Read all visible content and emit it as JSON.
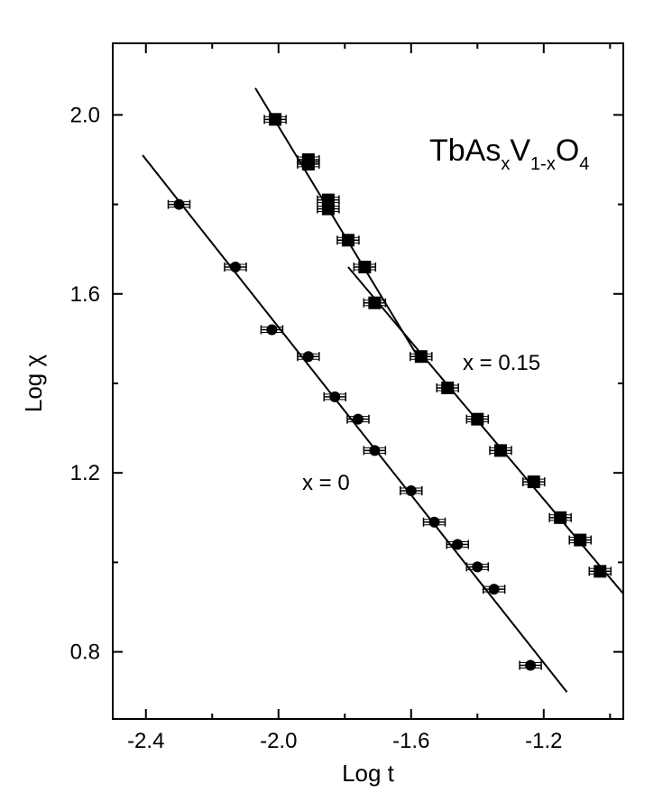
{
  "chart_data": {
    "type": "scatter",
    "xlabel": "Log t",
    "ylabel": "Log χ",
    "xlim": [
      -2.5,
      -0.96
    ],
    "ylim": [
      0.65,
      2.16
    ],
    "xticks": [
      -2.4,
      -2.0,
      -1.6,
      -1.2
    ],
    "xtick_labels": [
      "-2.4",
      "-2.0",
      "-1.6",
      "-1.2"
    ],
    "yticks": [
      0.8,
      1.2,
      1.6,
      2.0
    ],
    "ytick_labels": [
      "0.8",
      "1.2",
      "1.6",
      "2.0"
    ],
    "formula": {
      "base1": "TbAs",
      "sub1": "x",
      "base2": "V",
      "sub2": "1-x",
      "base3": "O",
      "sub3": "4"
    },
    "series": [
      {
        "name": "x = 0",
        "marker": "circle",
        "label": "x = 0",
        "x": [
          -2.3,
          -2.13,
          -2.02,
          -1.91,
          -1.83,
          -1.76,
          -1.71,
          -1.6,
          -1.53,
          -1.46,
          -1.4,
          -1.35,
          -1.24
        ],
        "y": [
          1.8,
          1.66,
          1.52,
          1.46,
          1.37,
          1.32,
          1.25,
          1.16,
          1.09,
          1.04,
          0.99,
          0.94,
          0.77
        ],
        "fit_lines": [
          {
            "x": [
              -2.41,
              -1.13
            ],
            "y": [
              1.91,
              0.71
            ]
          }
        ]
      },
      {
        "name": "x = 0.15",
        "marker": "square",
        "label": "x = 0.15",
        "x": [
          -2.01,
          -1.91,
          -1.91,
          -1.85,
          -1.85,
          -1.79,
          -1.74,
          -1.71,
          -1.57,
          -1.49,
          -1.4,
          -1.33,
          -1.23,
          -1.15,
          -1.09,
          -1.03
        ],
        "y": [
          1.99,
          1.9,
          1.89,
          1.81,
          1.79,
          1.72,
          1.66,
          1.58,
          1.46,
          1.39,
          1.32,
          1.25,
          1.18,
          1.1,
          1.05,
          0.98
        ],
        "fit_lines": [
          {
            "x": [
              -2.07,
              -1.58
            ],
            "y": [
              2.06,
              1.46
            ]
          },
          {
            "x": [
              -1.79,
              -0.96
            ],
            "y": [
              1.66,
              0.93
            ]
          }
        ]
      }
    ],
    "grid": false
  }
}
